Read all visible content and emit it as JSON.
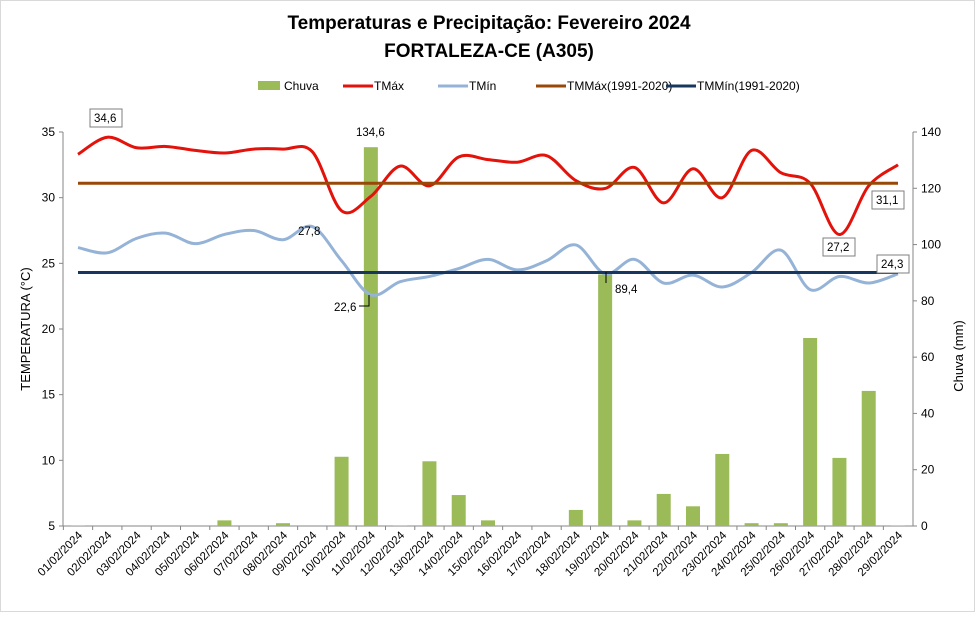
{
  "chart_data": {
    "type": "bar+line",
    "title": "Temperaturas e Precipitação: Fevereiro 2024",
    "subtitle": "FORTALEZA-CE (A305)",
    "ylabel": "TEMPERATURA (°C)",
    "y2label": "Chuva (mm)",
    "ylim": [
      5,
      35
    ],
    "y2lim": [
      0,
      140
    ],
    "yticks": [
      "5",
      "10",
      "15",
      "20",
      "25",
      "30",
      "35"
    ],
    "y2ticks": [
      "0",
      "20",
      "40",
      "60",
      "80",
      "100",
      "120",
      "140"
    ],
    "legend_position": "top",
    "categories": [
      "01/02/2024",
      "02/02/2024",
      "03/02/2024",
      "04/02/2024",
      "05/02/2024",
      "06/02/2024",
      "07/02/2024",
      "08/02/2024",
      "09/02/2024",
      "10/02/2024",
      "11/02/2024",
      "12/02/2024",
      "13/02/2024",
      "14/02/2024",
      "15/02/2024",
      "16/02/2024",
      "17/02/2024",
      "18/02/2024",
      "19/02/2024",
      "20/02/2024",
      "21/02/2024",
      "22/02/2024",
      "23/02/2024",
      "24/02/2024",
      "25/02/2024",
      "26/02/2024",
      "27/02/2024",
      "28/02/2024",
      "29/02/2024"
    ],
    "series": [
      {
        "name": "Chuva",
        "type": "bar",
        "axis": "right",
        "color": "#9bbb59",
        "values": [
          0.2,
          0,
          0,
          0,
          0,
          2,
          0,
          1,
          0,
          24.6,
          134.6,
          0.2,
          23,
          11,
          2,
          0,
          0,
          5.7,
          89.4,
          2,
          11.4,
          7,
          25.6,
          1,
          1,
          66.8,
          24.2,
          48,
          0.2
        ]
      },
      {
        "name": "TMáx",
        "type": "line",
        "axis": "left",
        "color": "#e3120b",
        "values": [
          33.3,
          34.6,
          33.8,
          33.9,
          33.6,
          33.4,
          33.7,
          33.7,
          33.5,
          29.0,
          30.1,
          32.4,
          30.9,
          33.1,
          32.9,
          32.7,
          33.2,
          31.3,
          30.7,
          32.3,
          29.6,
          32.2,
          30.0,
          33.6,
          31.9,
          31.1,
          27.2,
          30.9,
          32.5
        ]
      },
      {
        "name": "TMín",
        "type": "line",
        "axis": "left",
        "color": "#95b3d7",
        "values": [
          26.2,
          25.8,
          26.9,
          27.3,
          26.5,
          27.2,
          27.5,
          26.8,
          27.8,
          25.2,
          22.6,
          23.6,
          24.0,
          24.6,
          25.3,
          24.5,
          25.2,
          26.4,
          24.2,
          25.3,
          23.5,
          24.1,
          23.2,
          24.3,
          26.0,
          23.0,
          24.0,
          23.5,
          24.2
        ]
      },
      {
        "name": "TMMáx(1991-2020)",
        "type": "hline",
        "axis": "left",
        "color": "#984807",
        "value": 31.1
      },
      {
        "name": "TMMín(1991-2020)",
        "type": "hline",
        "axis": "left",
        "color": "#17375e",
        "value": 24.3
      }
    ],
    "annotations": [
      {
        "text": "34,6",
        "series": "TMáx",
        "index": 1,
        "boxed": true
      },
      {
        "text": "134,6",
        "series": "Chuva",
        "index": 10,
        "boxed": false
      },
      {
        "text": "27,8",
        "series": "TMín",
        "index": 8,
        "boxed": false
      },
      {
        "text": "22,6",
        "series": "TMín",
        "index": 10,
        "boxed": false
      },
      {
        "text": "89,4",
        "series": "Chuva",
        "index": 18,
        "boxed": false
      },
      {
        "text": "27,2",
        "series": "TMáx",
        "index": 26,
        "boxed": true
      },
      {
        "text": "31,1",
        "series": "TMMáx(1991-2020)",
        "index": 28,
        "boxed": true
      },
      {
        "text": "24,3",
        "series": "TMMín(1991-2020)",
        "index": 28,
        "boxed": true
      }
    ]
  }
}
